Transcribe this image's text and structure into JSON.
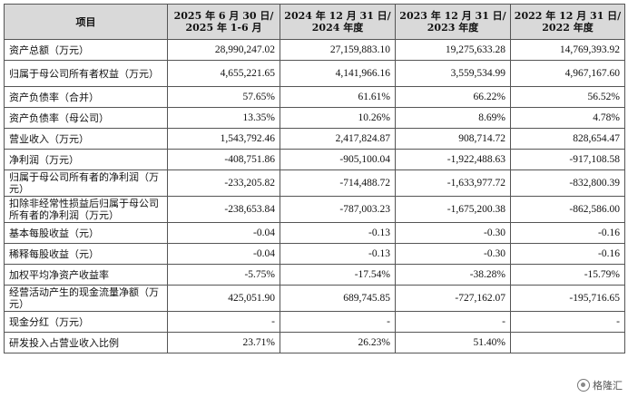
{
  "header": {
    "item": "项目",
    "columns": [
      [
        "2025 年 6 月 30 日/",
        "2025 年 1-6 月"
      ],
      [
        "2024 年 12 月 31 日/",
        "2024 年度"
      ],
      [
        "2023 年 12 月 31 日/",
        "2023 年度"
      ],
      [
        "2022 年 12 月 31 日/",
        "2022 年度"
      ]
    ]
  },
  "rows": [
    {
      "label": "资产总额（万元）",
      "values": [
        "28,990,247.02",
        "27,159,883.10",
        "19,275,633.28",
        "14,769,393.92"
      ]
    },
    {
      "label": "归属于母公司所有者权益（万元）",
      "values": [
        "4,655,221.65",
        "4,141,966.16",
        "3,559,534.99",
        "4,967,167.60"
      ]
    },
    {
      "label": "资产负债率（合并）",
      "values": [
        "57.65%",
        "61.61%",
        "66.22%",
        "56.52%"
      ]
    },
    {
      "label": "资产负债率（母公司）",
      "values": [
        "13.35%",
        "10.26%",
        "8.69%",
        "4.78%"
      ]
    },
    {
      "label": "营业收入（万元）",
      "values": [
        "1,543,792.46",
        "2,417,824.87",
        "908,714.72",
        "828,654.47"
      ]
    },
    {
      "label": "净利润（万元）",
      "values": [
        "-408,751.86",
        "-905,100.04",
        "-1,922,488.63",
        "-917,108.58"
      ]
    },
    {
      "label": "归属于母公司所有者的净利润（万元）",
      "values": [
        "-233,205.82",
        "-714,488.72",
        "-1,633,977.72",
        "-832,800.39"
      ]
    },
    {
      "label": "扣除非经常性损益后归属于母公司所有者的净利润（万元）",
      "values": [
        "-238,653.84",
        "-787,003.23",
        "-1,675,200.38",
        "-862,586.00"
      ]
    },
    {
      "label": "基本每股收益（元）",
      "values": [
        "-0.04",
        "-0.13",
        "-0.30",
        "-0.16"
      ]
    },
    {
      "label": "稀释每股收益（元）",
      "values": [
        "-0.04",
        "-0.13",
        "-0.30",
        "-0.16"
      ]
    },
    {
      "label": "加权平均净资产收益率",
      "values": [
        "-5.75%",
        "-17.54%",
        "-38.28%",
        "-15.79%"
      ]
    },
    {
      "label": "经营活动产生的现金流量净额（万元）",
      "values": [
        "425,051.90",
        "689,745.85",
        "-727,162.07",
        "-195,716.65"
      ]
    },
    {
      "label": "现金分红（万元）",
      "values": [
        "-",
        "-",
        "-",
        "-"
      ]
    },
    {
      "label": "研发投入占营业收入比例",
      "values": [
        "23.71%",
        "26.23%",
        "51.40%",
        ""
      ]
    }
  ],
  "watermark": {
    "text": "格隆汇",
    "icon": "gelonghui-logo-icon"
  }
}
